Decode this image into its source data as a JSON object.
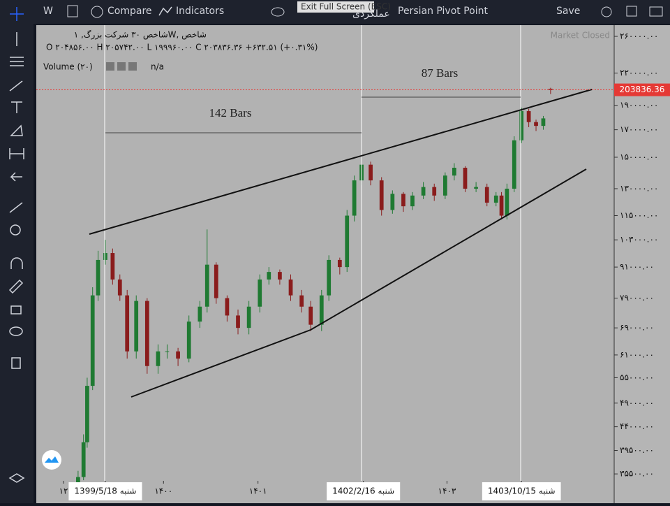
{
  "toolbar": {
    "interval": "W",
    "compare": "Compare",
    "indicators": "Indicators",
    "tooltip": "Exit Full Screen (ESC)",
    "template": "عملکردی",
    "study": "Persian Pivot Point",
    "save": "Save"
  },
  "legend": {
    "symbol": "شاخص ۳۰ شرکت بزرگ, ۱W, شاخص",
    "ohlc": "O ۲۰۴۸۵۶.۰۰  H ۲۰۵۷۴۲.۰۰  L ۱۹۹۹۶۰.۰۰  C ۲۰۳۸۳۶.۳۶   +۶۳۲.۵۱ (+۰.۳۱%)",
    "volume": "Volume (۲۰)",
    "volume_value": "n/a",
    "status": "Market Closed"
  },
  "chart_data": {
    "type": "candlestick",
    "log_scale": true,
    "up_color": "#1f7a32",
    "down_color": "#8a1c1c",
    "x": [
      -15,
      -12,
      -10,
      -7,
      -4,
      0,
      4,
      8,
      12,
      17,
      23,
      29,
      34,
      40,
      46,
      52,
      56,
      61,
      67,
      73,
      79,
      85,
      90,
      96,
      102,
      108,
      113,
      119,
      123,
      129,
      133,
      137,
      141,
      146,
      152,
      158,
      164,
      169,
      175,
      181,
      187,
      192,
      198,
      204,
      210,
      215,
      218,
      221,
      225,
      229,
      233,
      237,
      241,
      245
    ],
    "open": [
      34000,
      35000,
      41000,
      53000,
      80000,
      94000,
      97000,
      86000,
      80000,
      62000,
      78000,
      58000,
      62000,
      62000,
      60000,
      71000,
      76000,
      92000,
      79000,
      73000,
      69000,
      76000,
      86000,
      89000,
      86000,
      80000,
      76000,
      70000,
      80000,
      94000,
      91000,
      115000,
      135000,
      145000,
      135000,
      118000,
      127000,
      120000,
      126000,
      131000,
      126000,
      138000,
      143000,
      130000,
      131000,
      122000,
      126000,
      115000,
      130000,
      162000,
      185000,
      176000,
      173000,
      204856
    ],
    "high": [
      36000,
      42500,
      55000,
      83000,
      98000,
      103000,
      99000,
      88000,
      82000,
      80000,
      79000,
      64000,
      64000,
      63000,
      73000,
      78000,
      108000,
      93000,
      80000,
      75000,
      78000,
      88000,
      91000,
      90000,
      88000,
      82000,
      78000,
      82000,
      96000,
      95000,
      118000,
      138000,
      150000,
      147000,
      137000,
      129000,
      128000,
      128000,
      134000,
      133000,
      140000,
      146000,
      144000,
      134000,
      133000,
      128000,
      128000,
      133000,
      165000,
      188000,
      187000,
      178000,
      181000,
      205742
    ],
    "low": [
      33500,
      34500,
      40000,
      52000,
      78000,
      92000,
      84000,
      78000,
      60000,
      60000,
      56000,
      56000,
      60000,
      58000,
      59000,
      69000,
      74000,
      77000,
      71000,
      67000,
      67000,
      74000,
      84000,
      84000,
      78000,
      74000,
      68000,
      68000,
      78000,
      88000,
      89000,
      112000,
      132000,
      132000,
      115000,
      116000,
      117000,
      118000,
      124000,
      123000,
      124000,
      135000,
      128000,
      128000,
      120000,
      120000,
      113000,
      113000,
      128000,
      160000,
      172000,
      169000,
      170000,
      199960
    ],
    "close": [
      35000,
      41000,
      53000,
      80000,
      94000,
      97000,
      86000,
      80000,
      62000,
      78000,
      58000,
      62000,
      62000,
      60000,
      71000,
      76000,
      92000,
      79000,
      73000,
      69000,
      76000,
      86000,
      89000,
      86000,
      80000,
      76000,
      70000,
      80000,
      94000,
      91000,
      115000,
      135000,
      145000,
      135000,
      118000,
      127000,
      120000,
      126000,
      131000,
      126000,
      138000,
      143000,
      130000,
      131000,
      122000,
      126000,
      115000,
      130000,
      162000,
      185000,
      176000,
      173000,
      179000,
      203836.36
    ],
    "xlim": [
      -38,
      280
    ],
    "ylim": [
      34400,
      273600
    ],
    "xticks": [
      {
        "value": -23,
        "label": "۱۲"
      },
      {
        "value": 0,
        "label": "1399/5/18  شنبه"
      },
      {
        "value": 32,
        "label": "۱۴۰۰"
      },
      {
        "value": 84,
        "label": "۱۴۰۱"
      },
      {
        "value": 142,
        "label": "1402/2/16  شنبه"
      },
      {
        "value": 188,
        "label": "۱۴۰۳"
      },
      {
        "value": 229,
        "label": "1403/10/15  شنبه"
      }
    ],
    "yticks": [
      {
        "value": 260000,
        "label": "۲۶۰۰۰۰.۰۰"
      },
      {
        "value": 220000,
        "label": "۲۲۰۰۰۰.۰۰"
      },
      {
        "value": 190000,
        "label": "۱۹۰۰۰۰.۰۰"
      },
      {
        "value": 170000,
        "label": "۱۷۰۰۰۰.۰۰"
      },
      {
        "value": 150000,
        "label": "۱۵۰۰۰۰.۰۰"
      },
      {
        "value": 130000,
        "label": "۱۳۰۰۰۰.۰۰"
      },
      {
        "value": 115000,
        "label": "۱۱۵۰۰۰.۰۰"
      },
      {
        "value": 103000,
        "label": "۱۰۳۰۰۰.۰۰"
      },
      {
        "value": 91000,
        "label": "۹۱۰۰۰.۰۰"
      },
      {
        "value": 79000,
        "label": "۷۹۰۰۰.۰۰"
      },
      {
        "value": 69000,
        "label": "۶۹۰۰۰.۰۰"
      },
      {
        "value": 61000,
        "label": "۶۱۰۰۰.۰۰"
      },
      {
        "value": 55000,
        "label": "۵۵۰۰۰.۰۰"
      },
      {
        "value": 49000,
        "label": "۴۹۰۰۰.۰۰"
      },
      {
        "value": 44000,
        "label": "۴۴۰۰۰.۰۰"
      },
      {
        "value": 39500,
        "label": "۳۹۵۰۰.۰۰"
      },
      {
        "value": 35500,
        "label": "۳۵۵۰۰.۰۰"
      }
    ],
    "last_price": 203836.36,
    "last_price_color": "#e53935",
    "annotations": [
      "142 Bars",
      "87 Bars"
    ]
  }
}
